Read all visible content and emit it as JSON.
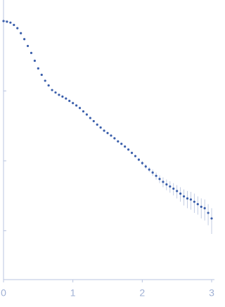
{
  "chart_data": {
    "type": "scatter",
    "log_y": true,
    "grid": false,
    "color": "#3b5fab",
    "error_color": "#b4c0dc",
    "xlim": [
      0,
      3
    ],
    "xticks": [
      0,
      1,
      2,
      3
    ],
    "ylim": [
      0.002,
      20
    ],
    "yticks": [
      0.01,
      0.1,
      1,
      10
    ],
    "x": [
      0,
      0.05,
      0.1,
      0.15,
      0.2,
      0.25,
      0.3,
      0.35,
      0.4,
      0.45,
      0.5,
      0.55,
      0.6,
      0.65,
      0.7,
      0.75,
      0.8,
      0.85,
      0.9,
      0.95,
      1.0,
      1.05,
      1.1,
      1.15,
      1.2,
      1.25,
      1.3,
      1.35,
      1.4,
      1.45,
      1.5,
      1.55,
      1.6,
      1.65,
      1.7,
      1.75,
      1.8,
      1.85,
      1.9,
      1.95,
      2.0,
      2.05,
      2.1,
      2.15,
      2.2,
      2.25,
      2.3,
      2.35,
      2.4,
      2.45,
      2.5,
      2.55,
      2.6,
      2.65,
      2.7,
      2.75,
      2.8,
      2.85,
      2.9,
      2.95,
      3.0
    ],
    "values": [
      10,
      9.8,
      9.5,
      8.8,
      7.9,
      6.7,
      5.5,
      4.4,
      3.5,
      2.7,
      2.1,
      1.7,
      1.4,
      1.2,
      1.03,
      0.95,
      0.88,
      0.83,
      0.78,
      0.72,
      0.67,
      0.62,
      0.57,
      0.51,
      0.46,
      0.41,
      0.37,
      0.33,
      0.3,
      0.27,
      0.25,
      0.23,
      0.21,
      0.19,
      0.175,
      0.16,
      0.145,
      0.13,
      0.117,
      0.104,
      0.093,
      0.083,
      0.075,
      0.068,
      0.061,
      0.055,
      0.05,
      0.046,
      0.043,
      0.04,
      0.037,
      0.034,
      0.031,
      0.029,
      0.028,
      0.026,
      0.024,
      0.022,
      0.021,
      0.018,
      0.015
    ],
    "errors": [
      0.05,
      0.05,
      0.05,
      0.04,
      0.04,
      0.03,
      0.03,
      0.02,
      0.02,
      0.01,
      0.01,
      0.01,
      0.01,
      0.01,
      0.01,
      0.01,
      0.01,
      0.01,
      0.01,
      0.01,
      0.01,
      0.01,
      0.01,
      0.01,
      0.01,
      0.01,
      0.01,
      0.01,
      0.01,
      0.01,
      0.01,
      0.005,
      0.005,
      0.005,
      0.005,
      0.005,
      0.005,
      0.005,
      0.005,
      0.005,
      0.006,
      0.006,
      0.006,
      0.007,
      0.007,
      0.007,
      0.008,
      0.008,
      0.008,
      0.008,
      0.008,
      0.008,
      0.008,
      0.008,
      0.008,
      0.008,
      0.007,
      0.007,
      0.007,
      0.006,
      0.006
    ]
  }
}
